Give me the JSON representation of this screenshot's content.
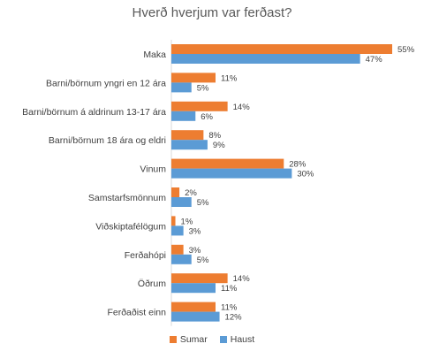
{
  "chart_data": {
    "type": "bar",
    "orientation": "horizontal",
    "title": "Hverð hverjum var ferðast?",
    "categories": [
      "Maka",
      "Barni/börnum yngri en 12 ára",
      "Barni/börnum á aldrinum 13-17 ára",
      "Barni/börnum 18 ára og eldri",
      "Vinum",
      "Samstarfsmönnum",
      "Viðskiptafélögum",
      "Ferðahópi",
      "Öðrum",
      "Ferðaðist einn"
    ],
    "series": [
      {
        "name": "Sumar",
        "color": "#ED7D31",
        "values": [
          55,
          11,
          14,
          8,
          28,
          2,
          1,
          3,
          14,
          11
        ]
      },
      {
        "name": "Haust",
        "color": "#5B9BD5",
        "values": [
          47,
          5,
          6,
          9,
          30,
          5,
          3,
          5,
          11,
          12
        ]
      }
    ],
    "value_suffix": "%",
    "xlim": [
      0,
      55
    ],
    "grid": false,
    "legend_position": "bottom"
  }
}
